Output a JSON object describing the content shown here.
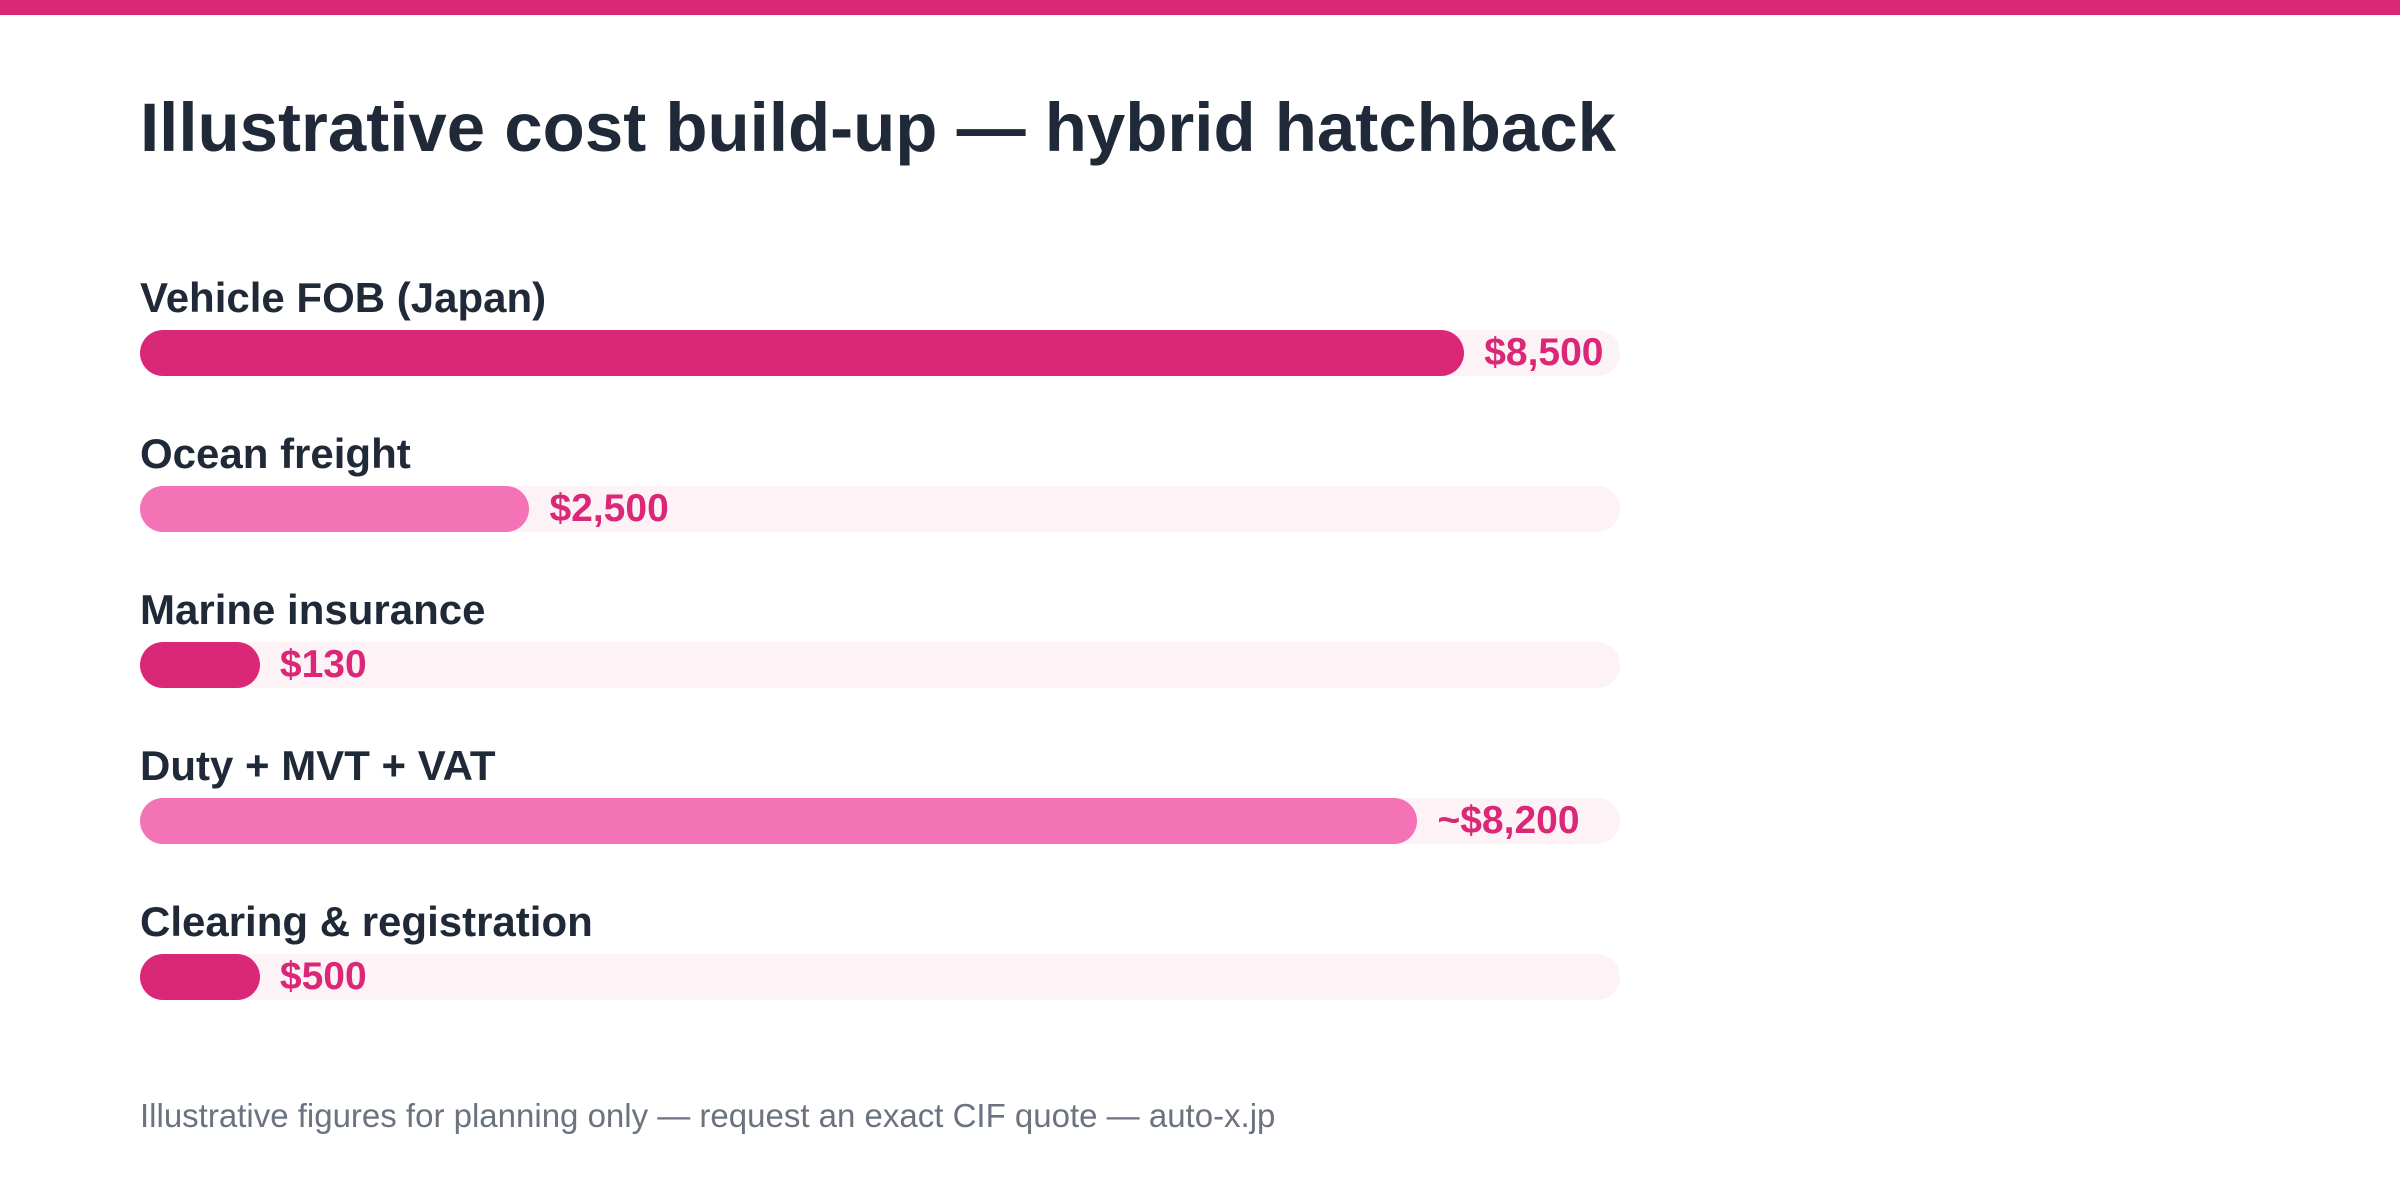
{
  "colors": {
    "accent": "#db2777",
    "accent_light": "#f472b6",
    "track": "#fdf2f6",
    "text": "#1f2937",
    "muted": "#6b7280"
  },
  "title": "Illustrative cost build-up — hybrid hatchback",
  "footnote": "Illustrative figures for planning only — request an exact CIF quote — auto-x.jp",
  "chart_data": {
    "type": "bar",
    "orientation": "horizontal",
    "title": "Illustrative cost build-up — hybrid hatchback",
    "categories": [
      "Vehicle FOB (Japan)",
      "Ocean freight",
      "Marine insurance",
      "Duty + MVT + VAT",
      "Clearing & registration"
    ],
    "values": [
      8500,
      2500,
      130,
      8200,
      500
    ],
    "value_labels": [
      "$8,500",
      "$2,500",
      "$130",
      "~$8,200",
      "$500"
    ],
    "bar_colors": [
      "#db2777",
      "#f472b6",
      "#db2777",
      "#f472b6",
      "#db2777"
    ],
    "xlim": [
      0,
      9500
    ],
    "min_bar_fraction": 0.081,
    "grid": false,
    "legend": "none"
  }
}
